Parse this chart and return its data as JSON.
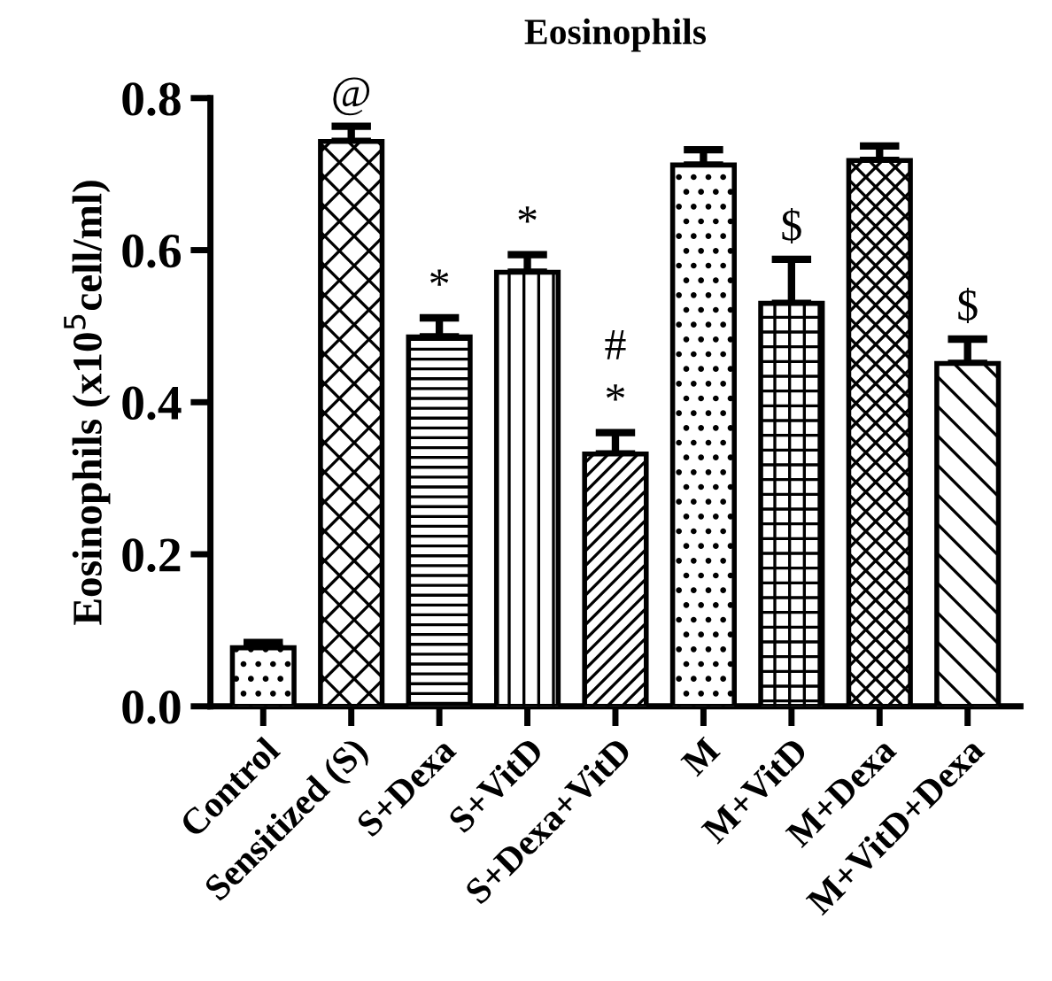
{
  "chart_data": {
    "type": "bar",
    "title": "Eosinophils",
    "ylabel": "Eosinophils (x10$^{5}$cell/ml)",
    "categories": [
      "Control",
      "Sensitized (S)",
      "S+Dexa",
      "S+VitD",
      "S+Dexa+VitD",
      "M",
      "M+VitD",
      "M+Dexa",
      "M+VitD+Dexa"
    ],
    "values": [
      0.077,
      0.743,
      0.486,
      0.571,
      0.332,
      0.712,
      0.53,
      0.718,
      0.451
    ],
    "errors": [
      0.007,
      0.02,
      0.025,
      0.023,
      0.028,
      0.02,
      0.058,
      0.019,
      0.032
    ],
    "colors": [
      "#ffffff",
      "#ffffff",
      "#ffffff",
      "#ffffff",
      "#ffffff",
      "#ffffff",
      "#ffffff",
      "#ffffff",
      "#ffffff"
    ],
    "ylim": [
      0,
      0.8
    ],
    "yticks": [
      {
        "value": 0,
        "label": "0.0"
      },
      0.2,
      0.4,
      0.6,
      0.8
    ],
    "grid": false,
    "legend": false,
    "annotations": [
      {
        "text": "@",
        "x": "Sensitized (S)",
        "y": 0.763
      },
      {
        "text": "*",
        "x": "S+Dexa",
        "y": 0.511
      },
      {
        "text": "*",
        "x": "S+VitD",
        "y": 0.594
      },
      {
        "text": "*",
        "x": "S+Dexa+VitD",
        "y": 0.36
      },
      {
        "text": "#",
        "x": "S+Dexa+VitD",
        "y": 0.36
      },
      {
        "text": "$",
        "x": "M+VitD",
        "y": 0.588
      },
      {
        "text": "$",
        "x": "M+VitD+Dexa",
        "y": 0.483
      }
    ]
  }
}
